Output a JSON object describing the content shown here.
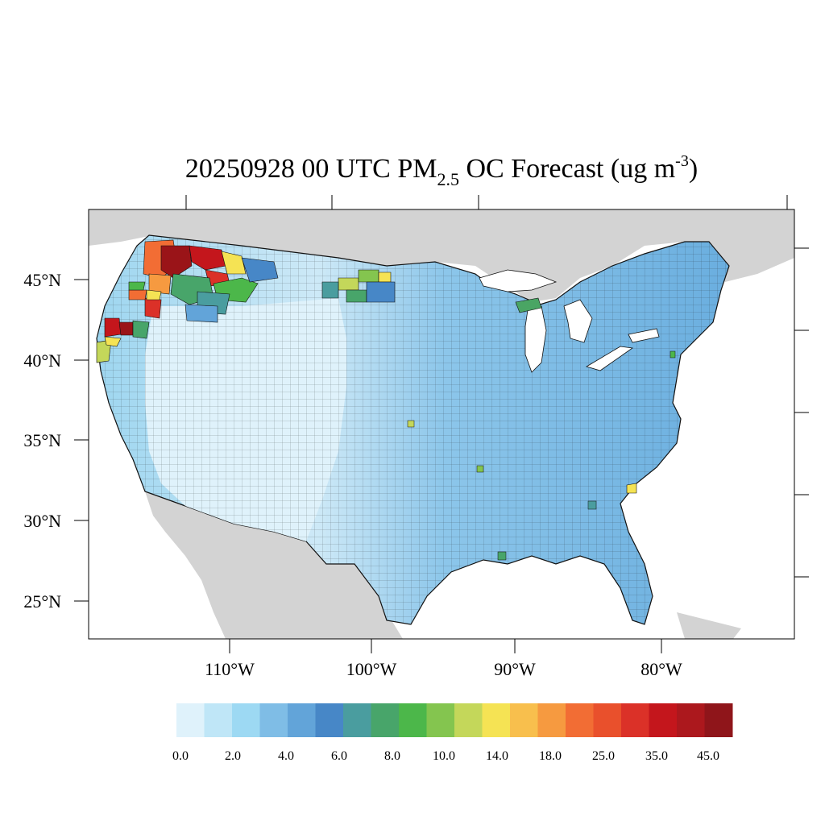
{
  "title": {
    "prefix": "20250928 00 UTC PM",
    "subscript": "2.5",
    "middle": " OC Forecast (ug m",
    "superscript": "-3",
    "suffix": ")"
  },
  "map": {
    "type": "choropleth",
    "region": "Contiguous United States (county level)",
    "land_color": "#d3d3d3",
    "water_color": "#ffffff",
    "lat_labels": [
      "45°N",
      "40°N",
      "35°N",
      "30°N",
      "25°N"
    ],
    "lon_labels": [
      "110°W",
      "100°W",
      "90°W",
      "80°W"
    ],
    "dominant_category": "0.0 - 4.0",
    "highlight_regions": [
      {
        "name": "Northern Rockies (ID/MT)",
        "color": "#9a1418"
      },
      {
        "name": "Northern California/Southern Oregon",
        "color": "#c4161c"
      },
      {
        "name": "North Dakota",
        "color": "#c4d75a"
      },
      {
        "name": "Upper Michigan",
        "color": "#4aa564"
      },
      {
        "name": "South Carolina",
        "color": "#f5e354"
      }
    ]
  },
  "colorbar": {
    "colors": [
      "#dff2fb",
      "#bfe6f7",
      "#9dd9f3",
      "#7fbde6",
      "#62a4d9",
      "#4787c7",
      "#4a9d9f",
      "#48a56a",
      "#4cb74a",
      "#84c54f",
      "#c4d75a",
      "#f5e354",
      "#f8bf4d",
      "#f69a40",
      "#f26d34",
      "#e9502c",
      "#db3128",
      "#c4161c",
      "#ac181d",
      "#8f151a"
    ],
    "labels": [
      "0.0",
      "2.0",
      "4.0",
      "6.0",
      "8.0",
      "10.0",
      "14.0",
      "18.0",
      "25.0",
      "35.0",
      "45.0"
    ]
  }
}
